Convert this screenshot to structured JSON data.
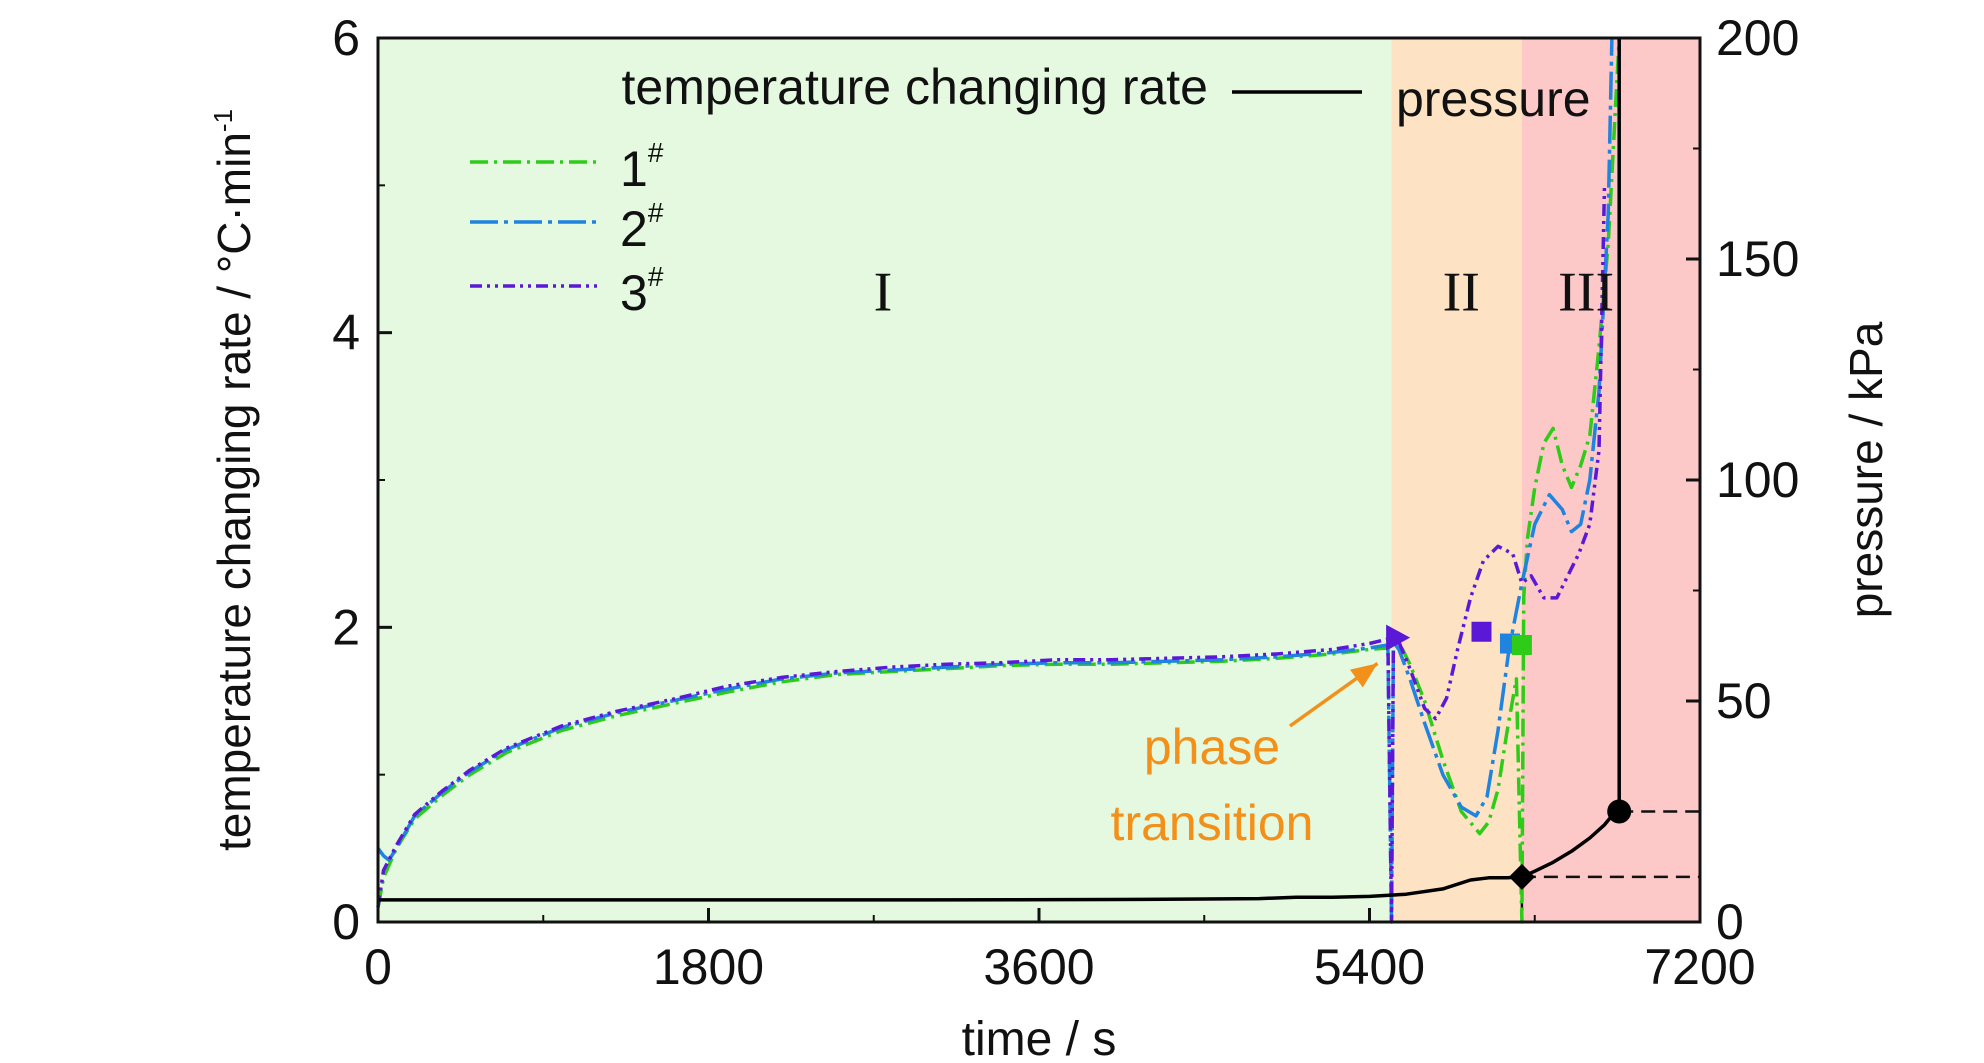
{
  "chart_data": {
    "type": "line",
    "xlabel": "time / s",
    "ylabel": "temperature changing rate / °C·min",
    "ylabel_sup": "-1",
    "y2label": "pressure / kPa",
    "xlim": [
      0,
      7200
    ],
    "ylim": [
      0,
      6
    ],
    "y2lim": [
      0,
      200
    ],
    "xticks": [
      "0",
      "1800",
      "3600",
      "5400",
      "7200"
    ],
    "yticks": [
      "0",
      "2",
      "4",
      "6"
    ],
    "y2ticks": [
      "0",
      "50",
      "100",
      "150",
      "200"
    ],
    "legend_title": "temperature changing rate",
    "pressure_label": "pressure",
    "grid": false,
    "regions": [
      {
        "label": "I",
        "x": [
          0,
          5520
        ],
        "color": "#e4f9e0"
      },
      {
        "label": "II",
        "x": [
          5520,
          6230
        ],
        "color": "#fde2c4"
      },
      {
        "label": "III",
        "x": [
          6230,
          7200
        ],
        "color": "#fcc8c8"
      }
    ],
    "annotation": {
      "text_lines": [
        "phase",
        "transition"
      ],
      "color": "#f39019",
      "target": [
        5520,
        1.85
      ]
    },
    "series": [
      {
        "name": "1",
        "sup": "#",
        "axis": "left",
        "color": "#2ecc18",
        "dash": "18 6 3 6",
        "x": [
          0,
          30,
          100,
          200,
          350,
          500,
          700,
          1000,
          1300,
          1600,
          1900,
          2200,
          2500,
          2800,
          3100,
          3400,
          3700,
          4000,
          4300,
          4600,
          4900,
          5200,
          5400,
          5500,
          5560,
          5620,
          5700,
          5800,
          5900,
          6000,
          6050,
          6100,
          6150,
          6200,
          6230,
          6240,
          6260,
          6300,
          6350,
          6400,
          6450,
          6500,
          6550,
          6600,
          6650,
          6700,
          6760
        ],
        "values": [
          0.1,
          0.3,
          0.5,
          0.7,
          0.86,
          1.0,
          1.15,
          1.3,
          1.4,
          1.48,
          1.56,
          1.63,
          1.68,
          1.7,
          1.72,
          1.74,
          1.75,
          1.75,
          1.76,
          1.77,
          1.79,
          1.82,
          1.85,
          1.86,
          1.9,
          1.75,
          1.5,
          1.1,
          0.75,
          0.6,
          0.68,
          0.9,
          1.3,
          1.65,
          0.0,
          2.2,
          2.6,
          2.95,
          3.25,
          3.35,
          3.1,
          2.95,
          3.1,
          3.3,
          3.9,
          4.6,
          6.0
        ]
      },
      {
        "name": "2",
        "sup": "#",
        "axis": "left",
        "color": "#1f83e0",
        "dash": "28 6 4 6",
        "x": [
          0,
          30,
          60,
          100,
          200,
          350,
          500,
          700,
          1000,
          1300,
          1600,
          1900,
          2200,
          2500,
          2800,
          3100,
          3400,
          3700,
          4000,
          4300,
          4600,
          4900,
          5200,
          5400,
          5500,
          5520,
          5530,
          5560,
          5620,
          5700,
          5800,
          5900,
          5980,
          6040,
          6100,
          6160,
          6230,
          6300,
          6380,
          6450,
          6500,
          6550,
          6600,
          6650,
          6700,
          6720
        ],
        "values": [
          0.5,
          0.45,
          0.42,
          0.5,
          0.72,
          0.88,
          1.02,
          1.17,
          1.32,
          1.42,
          1.5,
          1.58,
          1.65,
          1.69,
          1.71,
          1.73,
          1.75,
          1.76,
          1.76,
          1.77,
          1.78,
          1.8,
          1.83,
          1.86,
          1.88,
          0.0,
          1.9,
          1.85,
          1.65,
          1.35,
          1.0,
          0.78,
          0.72,
          0.85,
          1.3,
          1.85,
          2.3,
          2.7,
          2.9,
          2.8,
          2.65,
          2.7,
          3.0,
          3.6,
          4.8,
          6.0
        ]
      },
      {
        "name": "3",
        "sup": "#",
        "axis": "left",
        "color": "#5b18d6",
        "dash": "12 5 3 5 3 5",
        "x": [
          0,
          30,
          100,
          200,
          350,
          500,
          700,
          1000,
          1300,
          1600,
          1900,
          2200,
          2500,
          2800,
          3100,
          3400,
          3700,
          4000,
          4300,
          4600,
          4900,
          5200,
          5400,
          5500,
          5520,
          5530,
          5560,
          5620,
          5700,
          5760,
          5820,
          5880,
          5950,
          6020,
          6100,
          6180,
          6230,
          6280,
          6350,
          6420,
          6480,
          6540,
          6600,
          6650,
          6680
        ],
        "values": [
          0.1,
          0.35,
          0.52,
          0.73,
          0.89,
          1.03,
          1.18,
          1.33,
          1.43,
          1.51,
          1.6,
          1.66,
          1.7,
          1.73,
          1.75,
          1.76,
          1.78,
          1.78,
          1.79,
          1.8,
          1.82,
          1.85,
          1.89,
          1.92,
          0.0,
          1.93,
          1.9,
          1.72,
          1.45,
          1.38,
          1.52,
          1.85,
          2.2,
          2.45,
          2.55,
          2.5,
          2.3,
          2.35,
          2.2,
          2.2,
          2.35,
          2.5,
          2.7,
          3.2,
          5.0
        ]
      },
      {
        "name": "pressure",
        "axis": "right",
        "color": "#000000",
        "dash": "",
        "x": [
          0,
          1000,
          2000,
          3000,
          4000,
          4500,
          4800,
          5000,
          5200,
          5400,
          5600,
          5800,
          5950,
          6050,
          6150,
          6230,
          6300,
          6400,
          6500,
          6600,
          6680,
          6740,
          6760,
          6760
        ],
        "values": [
          5,
          5,
          5,
          5,
          5.1,
          5.2,
          5.3,
          5.6,
          5.6,
          5.8,
          6.3,
          7.5,
          9.5,
          10.0,
          10.0,
          10.2,
          11.5,
          13.5,
          16.0,
          19.0,
          22.0,
          25.0,
          25.0,
          200
        ]
      }
    ],
    "markers": [
      {
        "shape": "triangle",
        "x": 5545,
        "y": 1.93,
        "color": "#5b18d6",
        "axis": "left"
      },
      {
        "shape": "square",
        "x": 6010,
        "y": 1.97,
        "color": "#5b18d6",
        "axis": "left"
      },
      {
        "shape": "square",
        "x": 6165,
        "y": 1.89,
        "color": "#1f83e0",
        "axis": "left"
      },
      {
        "shape": "square",
        "x": 6230,
        "y": 1.88,
        "color": "#2ecc18",
        "axis": "left"
      },
      {
        "shape": "diamond",
        "x": 6230,
        "y": 10.2,
        "color": "#000000",
        "axis": "right"
      },
      {
        "shape": "circle",
        "x": 6760,
        "y": 25.0,
        "color": "#000000",
        "axis": "right"
      }
    ],
    "guides": [
      {
        "x_from": 6230,
        "y": 10.2,
        "axis": "right"
      },
      {
        "x_from": 6760,
        "y": 25.0,
        "axis": "right"
      }
    ]
  }
}
